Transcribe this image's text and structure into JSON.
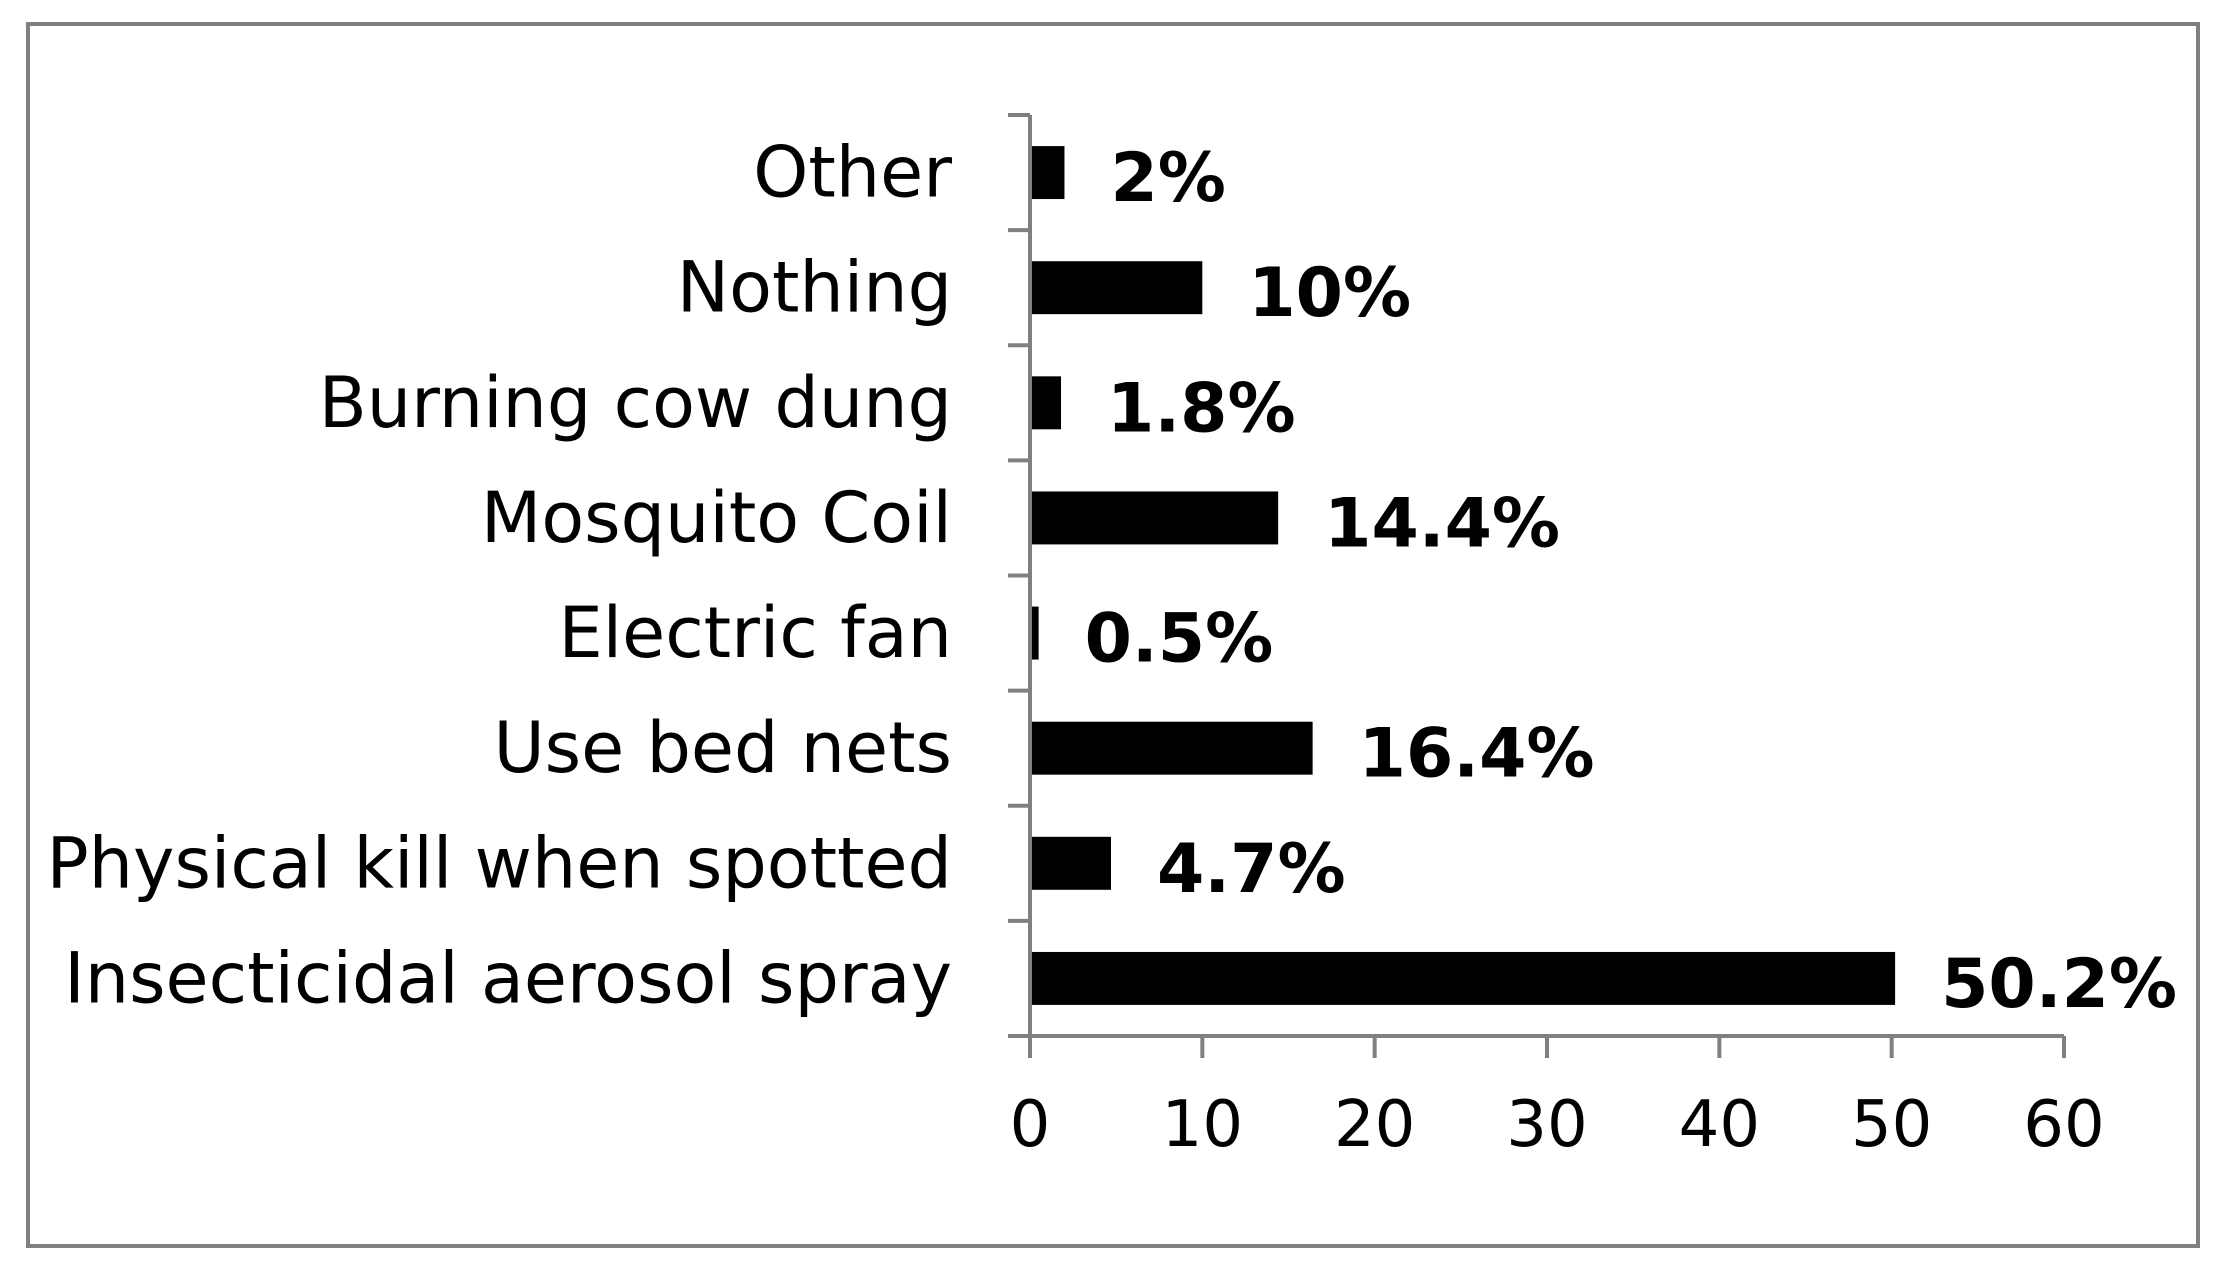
{
  "chart_data": {
    "type": "bar",
    "orientation": "horizontal",
    "categories": [
      "Insecticidal aerosol spray",
      "Physical kill when spotted",
      "Use bed nets",
      "Electric fan",
      "Mosquito Coil",
      "Burning cow dung",
      "Nothing",
      "Other"
    ],
    "values": [
      50.2,
      4.7,
      16.4,
      0.5,
      14.4,
      1.8,
      10,
      2
    ],
    "data_labels": [
      "50.2%",
      "4.7%",
      "16.4%",
      "0.5%",
      "14.4%",
      "1.8%",
      "10%",
      "2%"
    ],
    "title": "",
    "xlabel": "",
    "ylabel": "",
    "xlim": [
      0,
      60
    ],
    "xticks": [
      0,
      10,
      20,
      30,
      40,
      50,
      60
    ],
    "grid": false,
    "legend": "none",
    "bar_color": "#000000",
    "axis_color": "#808080",
    "border_color": "#808080"
  }
}
